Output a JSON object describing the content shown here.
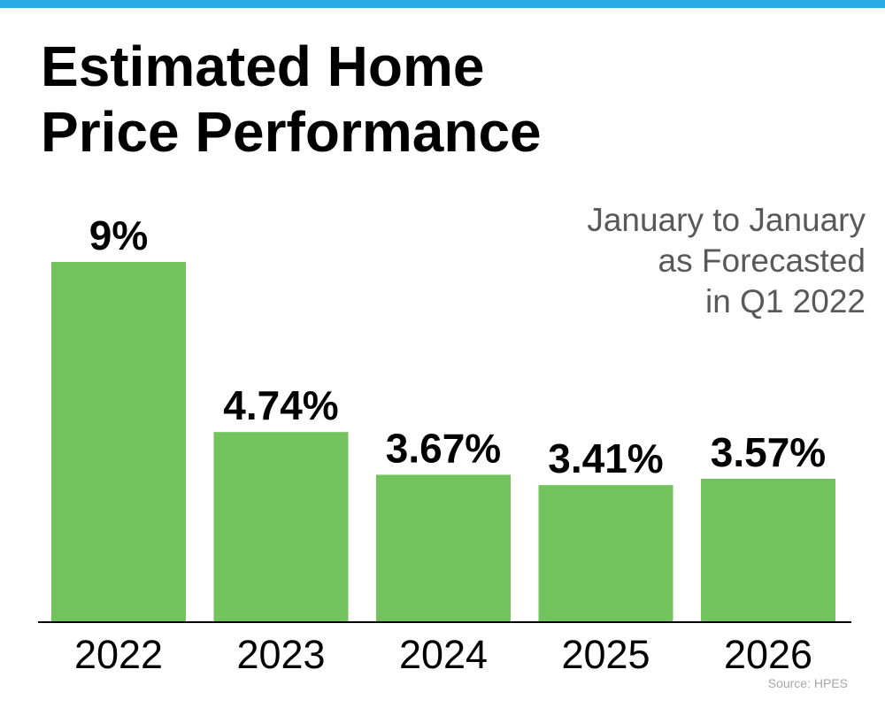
{
  "colors": {
    "accent_bar": "#2aaae2",
    "bar": "#72c35d",
    "text": "#000000",
    "subtitle": "#595959",
    "source": "#a6a6a6"
  },
  "title_lines": [
    "Estimated Home",
    "Price Performance"
  ],
  "subtitle_lines": [
    "January to January",
    "as Forecasted",
    "in Q1 2022"
  ],
  "source": "Source: HPES",
  "chart_data": {
    "type": "bar",
    "title": "Estimated Home Price Performance",
    "subtitle": "January to January as Forecasted in Q1 2022",
    "categories": [
      "2022",
      "2023",
      "2024",
      "2025",
      "2026"
    ],
    "values": [
      9,
      4.74,
      3.67,
      3.41,
      3.57
    ],
    "value_labels": [
      "9%",
      "4.74%",
      "3.67%",
      "3.41%",
      "3.57%"
    ],
    "xlabel": "",
    "ylabel": "",
    "ylim": [
      0,
      9
    ],
    "grid": false,
    "legend": "none"
  }
}
